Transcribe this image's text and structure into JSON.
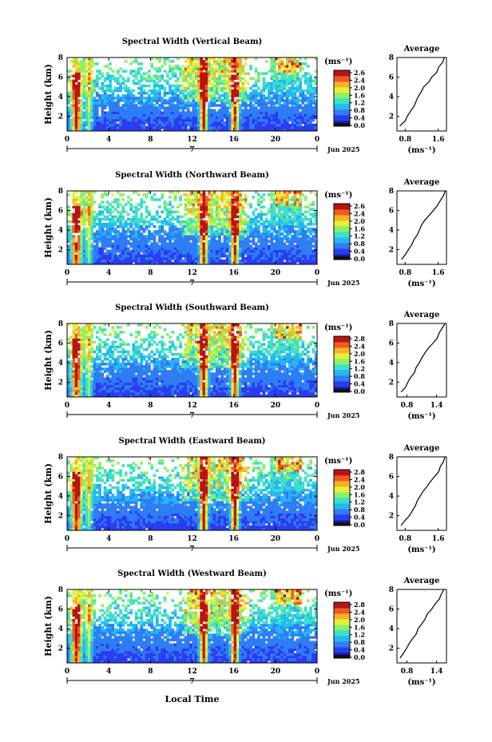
{
  "figure": {
    "xlabel": "Local Time",
    "xticks": [
      "0",
      "4",
      "8",
      "12",
      "16",
      "20",
      "0"
    ],
    "day_label": "7",
    "month_label": "Jun 2025",
    "ylabel": "Height (km)",
    "yticks": [
      "2",
      "4",
      "6",
      "8"
    ],
    "colorbar_unit": "(ms⁻¹)",
    "colormap": [
      "#1a1aa8",
      "#2a3df0",
      "#2f7df5",
      "#26b7f2",
      "#3fe0c8",
      "#8cf06a",
      "#e6f03a",
      "#f7b22a",
      "#ef5a22",
      "#b81414"
    ]
  },
  "chart_data": [
    {
      "type": "heatmap",
      "title": "Spectral Width (Vertical Beam)",
      "xlim": [
        0,
        24
      ],
      "ylim": [
        0.5,
        8
      ],
      "colorbar": {
        "ticks": [
          "2.6",
          "2.4",
          "2.0",
          "1.6",
          "1.2",
          "0.8",
          "0.4",
          "0.0"
        ],
        "range": [
          0,
          2.8
        ]
      },
      "profile": {
        "title": "Average",
        "xlabel": "(ms⁻¹)",
        "xticks": [
          "0.8",
          "1.6"
        ],
        "xlim": [
          0.6,
          1.8
        ],
        "heights": [
          1.0,
          1.5,
          2.0,
          2.5,
          3.0,
          3.5,
          4.0,
          4.5,
          5.0,
          5.5,
          6.0,
          6.5,
          7.0,
          7.5,
          8.0
        ],
        "values": [
          0.68,
          0.78,
          0.86,
          0.94,
          1.0,
          1.06,
          1.12,
          1.18,
          1.26,
          1.36,
          1.46,
          1.56,
          1.62,
          1.7,
          1.74
        ]
      }
    },
    {
      "type": "heatmap",
      "title": "Spectral Width (Northward Beam)",
      "xlim": [
        0,
        24
      ],
      "ylim": [
        0.5,
        8
      ],
      "colorbar": {
        "ticks": [
          "2.6",
          "2.4",
          "2.0",
          "1.6",
          "1.2",
          "0.8",
          "0.4",
          "0.0"
        ],
        "range": [
          0,
          2.8
        ]
      },
      "profile": {
        "title": "Average",
        "xlabel": "(ms⁻¹)",
        "xticks": [
          "0.8",
          "1.6"
        ],
        "xlim": [
          0.6,
          1.8
        ],
        "heights": [
          1.0,
          1.5,
          2.0,
          2.5,
          3.0,
          3.5,
          4.0,
          4.5,
          5.0,
          5.5,
          6.0,
          6.5,
          7.0,
          7.5,
          8.0
        ],
        "values": [
          0.7,
          0.8,
          0.88,
          0.96,
          1.02,
          1.08,
          1.14,
          1.2,
          1.28,
          1.38,
          1.48,
          1.58,
          1.64,
          1.72,
          1.76
        ]
      }
    },
    {
      "type": "heatmap",
      "title": "Spectral Width (Southward Beam)",
      "xlim": [
        0,
        24
      ],
      "ylim": [
        0.5,
        8
      ],
      "colorbar": {
        "ticks": [
          "2.8",
          "2.4",
          "2.0",
          "1.6",
          "1.2",
          "0.8",
          "0.4",
          "0.0"
        ],
        "range": [
          0,
          2.8
        ]
      },
      "profile": {
        "title": "Average",
        "xlabel": "(ms⁻¹)",
        "xticks": [
          "0.8",
          "1.4"
        ],
        "xlim": [
          0.6,
          1.6
        ],
        "heights": [
          1.0,
          1.5,
          2.0,
          2.5,
          3.0,
          3.5,
          4.0,
          4.5,
          5.0,
          5.5,
          6.0,
          6.5,
          7.0,
          7.5,
          8.0
        ],
        "values": [
          0.68,
          0.76,
          0.82,
          0.88,
          0.94,
          0.98,
          1.04,
          1.1,
          1.16,
          1.24,
          1.32,
          1.4,
          1.46,
          1.52,
          1.56
        ]
      }
    },
    {
      "type": "heatmap",
      "title": "Spectral Width (Eastward Beam)",
      "xlim": [
        0,
        24
      ],
      "ylim": [
        0.5,
        8
      ],
      "colorbar": {
        "ticks": [
          "2.8",
          "2.4",
          "2.0",
          "1.6",
          "1.2",
          "0.8",
          "0.4",
          "0.0"
        ],
        "range": [
          0,
          2.8
        ]
      },
      "profile": {
        "title": "Average",
        "xlabel": "(ms⁻¹)",
        "xticks": [
          "0.8",
          "1.6"
        ],
        "xlim": [
          0.6,
          1.8
        ],
        "heights": [
          1.0,
          1.5,
          2.0,
          2.5,
          3.0,
          3.5,
          4.0,
          4.5,
          5.0,
          5.5,
          6.0,
          6.5,
          7.0,
          7.5,
          8.0
        ],
        "values": [
          0.7,
          0.8,
          0.9,
          0.98,
          1.04,
          1.1,
          1.16,
          1.24,
          1.32,
          1.42,
          1.5,
          1.6,
          1.66,
          1.72,
          1.76
        ]
      }
    },
    {
      "type": "heatmap",
      "title": "Spectral Width (Westward Beam)",
      "xlim": [
        0,
        24
      ],
      "ylim": [
        0.5,
        8
      ],
      "colorbar": {
        "ticks": [
          "2.8",
          "2.4",
          "2.0",
          "1.6",
          "1.2",
          "0.8",
          "0.4",
          "0.0"
        ],
        "range": [
          0,
          2.8
        ]
      },
      "profile": {
        "title": "Average",
        "xlabel": "(ms⁻¹)",
        "xticks": [
          "0.8",
          "1.4"
        ],
        "xlim": [
          0.6,
          1.6
        ],
        "heights": [
          1.0,
          1.5,
          2.0,
          2.5,
          3.0,
          3.5,
          4.0,
          4.5,
          5.0,
          5.5,
          6.0,
          6.5,
          7.0,
          7.5,
          8.0
        ],
        "values": [
          0.66,
          0.74,
          0.8,
          0.86,
          0.92,
          0.98,
          1.04,
          1.1,
          1.16,
          1.22,
          1.3,
          1.38,
          1.44,
          1.5,
          1.54
        ]
      }
    }
  ]
}
